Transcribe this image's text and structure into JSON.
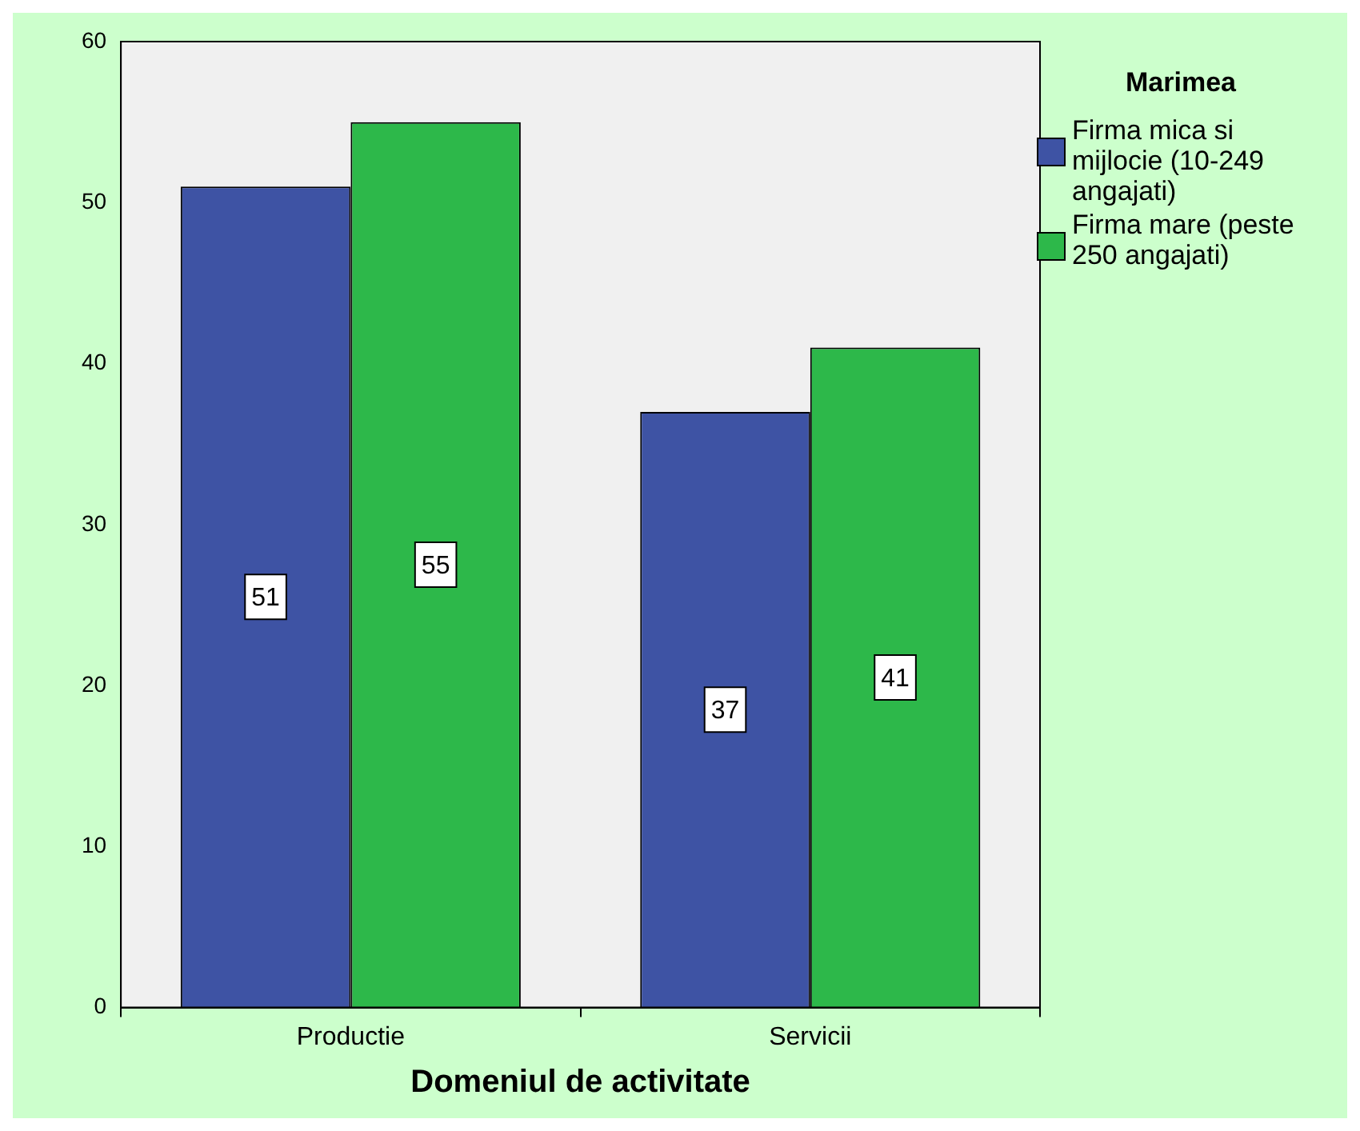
{
  "chart_data": {
    "type": "bar",
    "xlabel": "Domeniul de activitate",
    "legend_title": "Marimea",
    "categories": [
      "Productie",
      "Servicii"
    ],
    "series": [
      {
        "name": "Firma mica si mijlocie (10-249 angajati)",
        "color": "#3e53a4",
        "values": [
          51,
          37
        ]
      },
      {
        "name": "Firma mare (peste 250 angajati)",
        "color": "#2db84a",
        "values": [
          55,
          41
        ]
      }
    ],
    "ylim": [
      0,
      60
    ],
    "yticks": [
      0,
      10,
      20,
      30,
      40,
      50,
      60
    ],
    "data_labels": true,
    "legend": "right",
    "grid": false
  }
}
